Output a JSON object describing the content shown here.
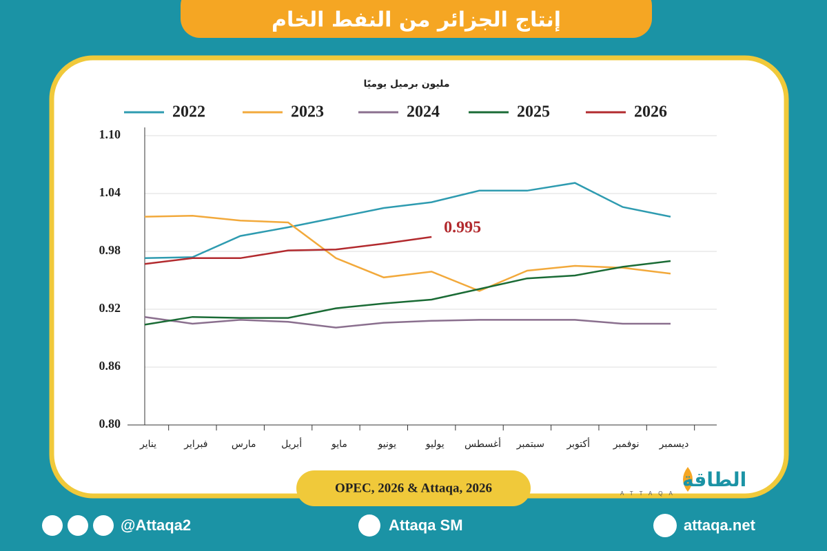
{
  "chart_data": {
    "type": "line",
    "title": "إنتاج الجزائر من النفط الخام",
    "y_label": "مليون برميل يوميًا",
    "categories": [
      "يناير",
      "فبراير",
      "مارس",
      "أبريل",
      "مايو",
      "يونيو",
      "يوليو",
      "أغسطس",
      "سبتمبر",
      "أكتوبر",
      "نوفمبر",
      "ديسمبر"
    ],
    "series": [
      {
        "name": "2022",
        "color": "#2e9bb0",
        "values": [
          0.973,
          0.974,
          0.996,
          1.005,
          1.015,
          1.025,
          1.031,
          1.043,
          1.043,
          1.051,
          1.026,
          1.016
        ]
      },
      {
        "name": "2023",
        "color": "#f2a93b",
        "values": [
          1.016,
          1.017,
          1.012,
          1.01,
          0.973,
          0.953,
          0.959,
          0.939,
          0.96,
          0.965,
          0.963,
          0.957
        ]
      },
      {
        "name": "2024",
        "color": "#8a6f8e",
        "values": [
          0.912,
          0.905,
          0.909,
          0.907,
          0.901,
          0.906,
          0.908,
          0.909,
          0.909,
          0.909,
          0.905,
          0.905
        ]
      },
      {
        "name": "2025",
        "color": "#1a6b35",
        "values": [
          0.904,
          0.912,
          0.911,
          0.911,
          0.921,
          0.926,
          0.93,
          0.941,
          0.952,
          0.955,
          0.964,
          0.97
        ]
      },
      {
        "name": "2026",
        "color": "#b22a2e",
        "values": [
          0.967,
          0.973,
          0.973,
          0.981,
          0.982,
          0.988,
          0.995,
          null,
          null,
          null,
          null,
          null
        ]
      }
    ],
    "ylim": [
      0.8,
      1.1
    ],
    "yticks": [
      {
        "value": 1.1,
        "label": "1.10"
      },
      1.04,
      0.98,
      0.92,
      0.86,
      {
        "value": 0.8,
        "label": "0.80"
      }
    ],
    "grid": true,
    "annotation": {
      "text": "0.995",
      "series": 4,
      "index": 6
    },
    "source": "OPEC, 2026 & Attaqa, 2026"
  },
  "logo": {
    "name": "الطاقة",
    "latin": "ATTAQA"
  },
  "footer": {
    "social": "@Attaqa2",
    "youtube": "Attaqa SM",
    "website": "attaqa.net"
  }
}
